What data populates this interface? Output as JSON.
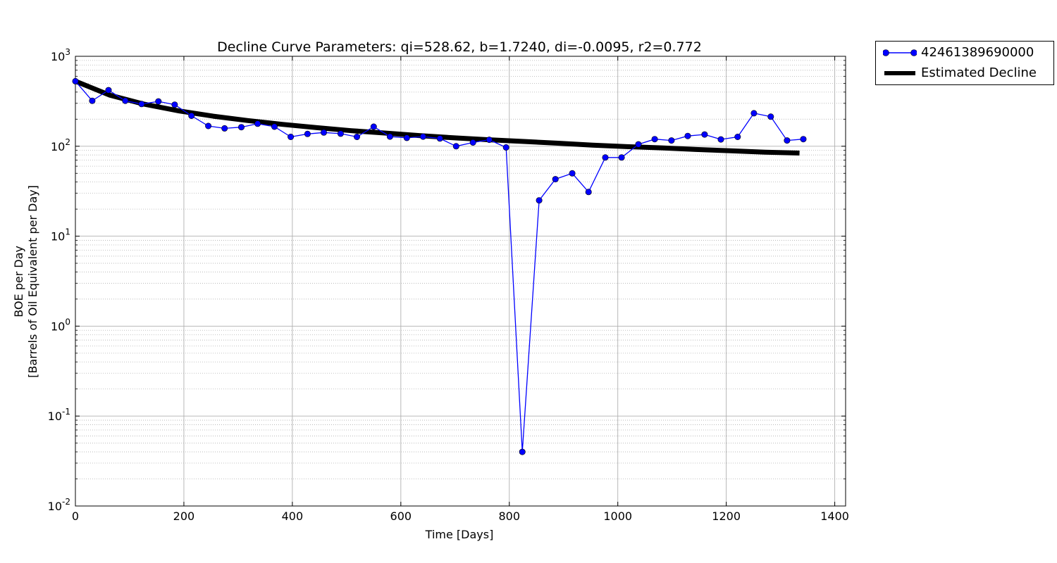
{
  "chart_data": {
    "type": "line",
    "title": "Decline Curve Parameters: qi=528.62, b=1.7240, di=-0.0095, r2=0.772",
    "xlabel": "Time [Days]",
    "ylabel_line1": "BOE per Day",
    "ylabel_line2": "[Barrels of Oil Equivalent per Day]",
    "yscale": "log",
    "xlim": [
      0,
      1420
    ],
    "ylim": [
      0.01,
      1000
    ],
    "grid": true,
    "legend_position": "outside-top-right",
    "x_ticks": [
      "0",
      "200",
      "400",
      "600",
      "800",
      "1000",
      "1200",
      "1400"
    ],
    "y_ticks": [
      {
        "base": "10",
        "exp": "-2"
      },
      {
        "base": "10",
        "exp": "-1"
      },
      {
        "base": "10",
        "exp": "0"
      },
      {
        "base": "10",
        "exp": "1"
      },
      {
        "base": "10",
        "exp": "2"
      },
      {
        "base": "10",
        "exp": "3"
      }
    ],
    "series": [
      {
        "name": "42461389690000",
        "style": "line-marker",
        "color": "#0000ff",
        "x": [
          0,
          31,
          61,
          92,
          122,
          153,
          183,
          214,
          245,
          275,
          306,
          336,
          367,
          397,
          428,
          458,
          489,
          519,
          550,
          580,
          611,
          641,
          672,
          702,
          733,
          763,
          794,
          824,
          855,
          885,
          916,
          946,
          977,
          1007,
          1038,
          1068,
          1099,
          1129,
          1160,
          1190,
          1221,
          1251,
          1282,
          1312,
          1342
        ],
        "y": [
          528,
          320,
          420,
          320,
          295,
          315,
          290,
          218,
          168,
          158,
          163,
          178,
          165,
          127,
          137,
          142,
          138,
          127,
          165,
          128,
          124,
          128,
          122,
          100,
          110,
          118,
          97,
          0.04,
          25,
          43,
          50,
          31,
          75,
          75,
          105,
          120,
          116,
          130,
          135,
          119,
          127,
          233,
          213,
          116,
          120
        ]
      },
      {
        "name": "Estimated Decline",
        "style": "thick-line",
        "color": "#000000",
        "qi": 528.62,
        "b": 1.724,
        "x_range": [
          0,
          1335
        ],
        "y": [
          528,
          370,
          293,
          247,
          216,
          193,
          175,
          161,
          149,
          140,
          131,
          124,
          118,
          113,
          108,
          103,
          99,
          96,
          92,
          89,
          86,
          84
        ]
      }
    ]
  }
}
